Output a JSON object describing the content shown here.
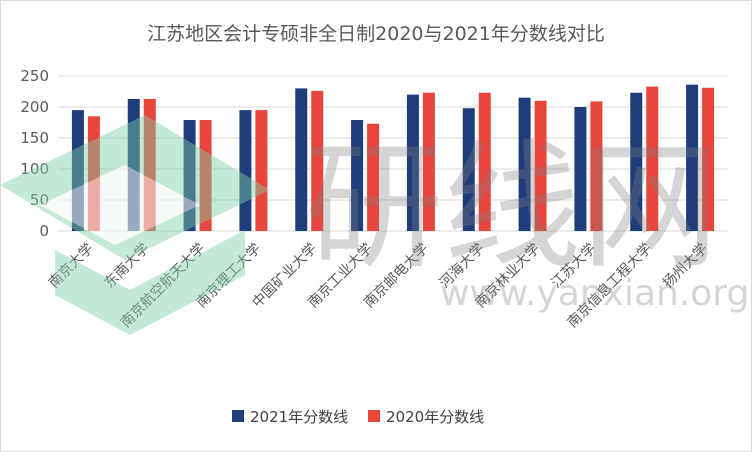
{
  "chart_data": {
    "type": "bar",
    "title": "江苏地区会计专硕非全日制2020与2021年分数线对比",
    "categories": [
      "南京大学",
      "东南大学",
      "南京航空航天大学",
      "南京理工大学",
      "中国矿业大学",
      "南京工业大学",
      "南京邮电大学",
      "河海大学",
      "南京林业大学",
      "江苏大学",
      "南京信息工程大学",
      "扬州大学"
    ],
    "series": [
      {
        "name": "2021年分数线",
        "color": "#1f3d7a",
        "values": [
          195,
          213,
          179,
          195,
          230,
          179,
          220,
          198,
          215,
          200,
          223,
          236
        ]
      },
      {
        "name": "2020年分数线",
        "color": "#e8453c",
        "values": [
          185,
          213,
          179,
          195,
          226,
          173,
          223,
          223,
          210,
          209,
          233,
          231
        ]
      }
    ],
    "yticks": [
      0,
      50,
      100,
      150,
      200,
      250
    ],
    "ylim": [
      0,
      250
    ],
    "grid": true,
    "legend_position": "bottom"
  },
  "watermark": {
    "text_big": "研线网",
    "text_url": "www.yanxian.org",
    "logo_color": "#7fcfa5"
  }
}
